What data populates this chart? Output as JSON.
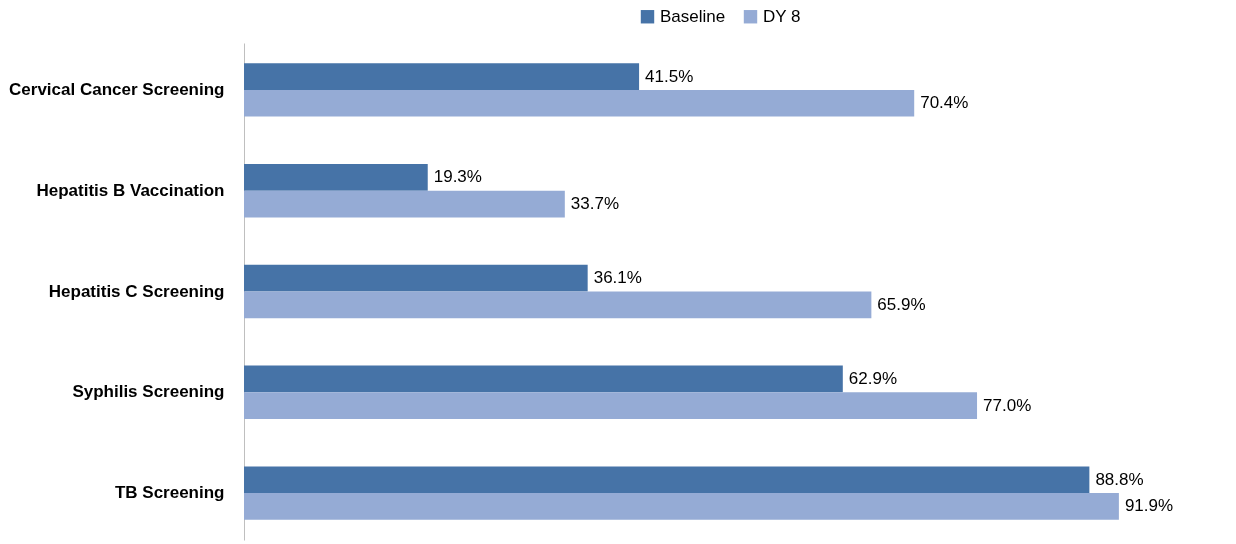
{
  "chart_data": {
    "type": "bar",
    "orientation": "horizontal",
    "categories": [
      "Cervical Cancer Screening",
      "Hepatitis B Vaccination",
      "Hepatitis C Screening",
      "Syphilis Screening",
      "TB Screening"
    ],
    "series": [
      {
        "name": "Baseline",
        "color": "#4673a7",
        "values": [
          41.5,
          19.3,
          36.1,
          62.9,
          88.8
        ],
        "value_labels": [
          "41.5%",
          "19.3%",
          "36.1%",
          "62.9%",
          "88.8%"
        ]
      },
      {
        "name": "DY 8",
        "color": "#95abd5",
        "values": [
          70.4,
          33.7,
          65.9,
          77.0,
          91.9
        ],
        "value_labels": [
          "70.4%",
          "33.7%",
          "65.9%",
          "77.0%",
          "91.9%"
        ]
      }
    ],
    "legend": "top"
  }
}
